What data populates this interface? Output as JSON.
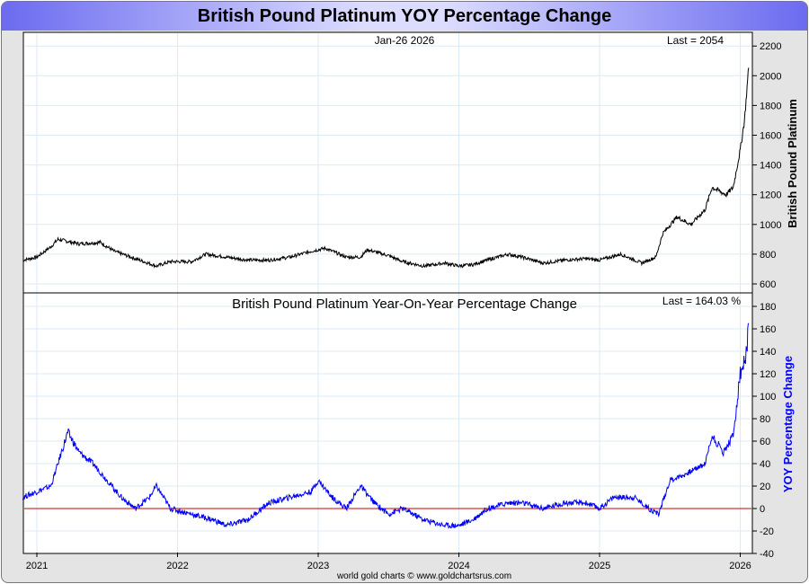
{
  "title": "British Pound Platinum YOY Percentage Change",
  "footer": "world gold charts © www.goldchartsrus.com",
  "colors": {
    "price": "#000000",
    "yoy": "#0000ff",
    "zero_line": "#cc0000",
    "grid": "#dbeaf5"
  },
  "chart_data": [
    {
      "type": "line",
      "title": "Jan-26  2026",
      "annotation": "Last = 2054",
      "ylabel": "British Pound Platinum",
      "ylim": [
        580,
        2260
      ],
      "yticks": [
        600,
        800,
        1000,
        1200,
        1400,
        1600,
        1800,
        2000,
        2200
      ],
      "x": [
        2020.9,
        2021.0,
        2021.1,
        2021.15,
        2021.3,
        2021.45,
        2021.55,
        2021.7,
        2021.85,
        2021.95,
        2022.1,
        2022.2,
        2022.35,
        2022.5,
        2022.65,
        2022.8,
        2022.95,
        2023.05,
        2023.2,
        2023.3,
        2023.35,
        2023.5,
        2023.6,
        2023.75,
        2023.9,
        2024.0,
        2024.1,
        2024.2,
        2024.35,
        2024.45,
        2024.6,
        2024.75,
        2024.9,
        2025.0,
        2025.15,
        2025.3,
        2025.4,
        2025.45,
        2025.55,
        2025.65,
        2025.75,
        2025.8,
        2025.9,
        2025.95,
        2026.0,
        2026.03,
        2026.06
      ],
      "values": [
        760,
        780,
        850,
        900,
        870,
        880,
        820,
        770,
        720,
        750,
        750,
        800,
        780,
        760,
        760,
        780,
        820,
        840,
        780,
        780,
        830,
        790,
        750,
        720,
        740,
        720,
        730,
        760,
        800,
        780,
        740,
        760,
        770,
        760,
        800,
        740,
        780,
        940,
        1050,
        1000,
        1100,
        1250,
        1200,
        1250,
        1500,
        1700,
        2054
      ]
    },
    {
      "type": "line",
      "title": "British Pound Platinum Year-On-Year Percentage Change",
      "annotation": "Last = 164.03 %",
      "ylabel": "YOY Percentage Change",
      "ylim": [
        -40,
        190
      ],
      "yticks": [
        -40,
        -20,
        0,
        20,
        40,
        60,
        80,
        100,
        120,
        140,
        160,
        180
      ],
      "xticks": [
        "2021",
        "2022",
        "2023",
        "2024",
        "2025",
        "2026"
      ],
      "x": [
        2020.9,
        2021.0,
        2021.1,
        2021.15,
        2021.22,
        2021.3,
        2021.4,
        2021.5,
        2021.6,
        2021.7,
        2021.8,
        2021.85,
        2021.95,
        2022.1,
        2022.25,
        2022.35,
        2022.5,
        2022.65,
        2022.8,
        2022.95,
        2023.0,
        2023.1,
        2023.2,
        2023.3,
        2023.4,
        2023.5,
        2023.6,
        2023.75,
        2023.9,
        2024.0,
        2024.1,
        2024.2,
        2024.35,
        2024.45,
        2024.6,
        2024.75,
        2024.9,
        2025.0,
        2025.1,
        2025.25,
        2025.35,
        2025.42,
        2025.5,
        2025.6,
        2025.75,
        2025.8,
        2025.88,
        2025.95,
        2026.0,
        2026.03,
        2026.05,
        2026.06
      ],
      "values": [
        10,
        15,
        20,
        40,
        68,
        50,
        40,
        25,
        10,
        0,
        10,
        20,
        0,
        -5,
        -10,
        -15,
        -10,
        5,
        10,
        15,
        25,
        10,
        0,
        20,
        5,
        -5,
        0,
        -10,
        -15,
        -15,
        -10,
        0,
        5,
        5,
        0,
        5,
        5,
        0,
        10,
        10,
        0,
        -5,
        25,
        30,
        40,
        65,
        50,
        65,
        120,
        130,
        145,
        164.03
      ]
    }
  ]
}
